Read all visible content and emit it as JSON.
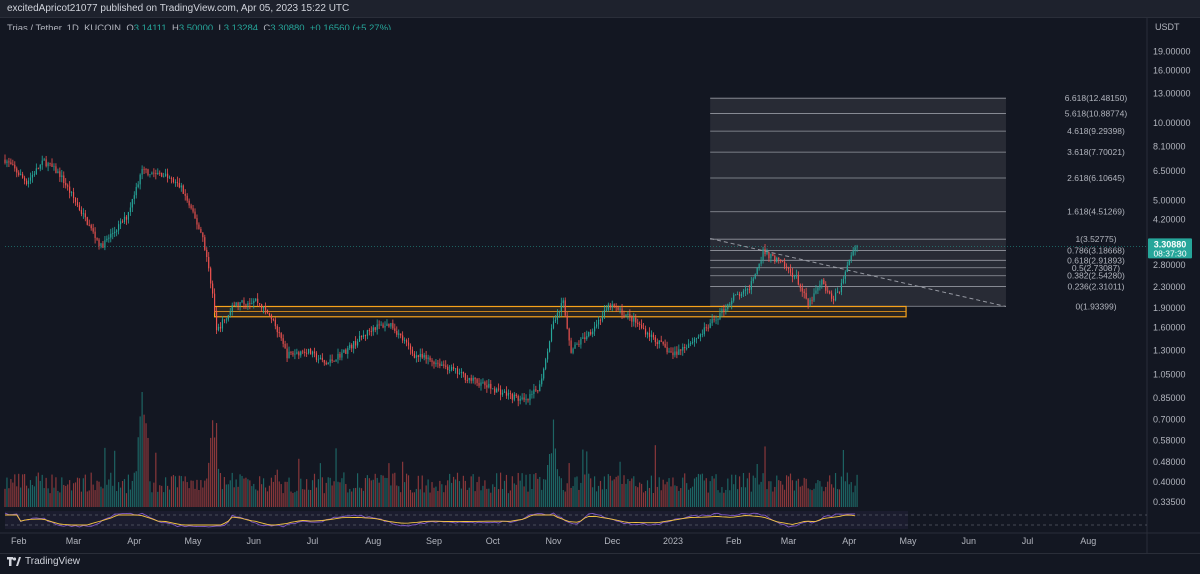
{
  "header": {
    "publish_text": "excitedApricot21077 published on TradingView.com, Apr 05, 2023 15:22 UTC"
  },
  "legend": {
    "symbol": "Trias / Tether, 1D, KUCOIN",
    "open_label": "O",
    "open": "3.14111",
    "high_label": "H",
    "high": "3.50000",
    "low_label": "L",
    "low": "3.13284",
    "close_label": "C",
    "close": "3.30880",
    "change": "+0.16560 (+5.27%)"
  },
  "footer": {
    "brand": "TradingView"
  },
  "colors": {
    "up": "#26a69a",
    "down": "#ef5350",
    "zone": "#f7a21b",
    "price_tag": "#26a69a",
    "background": "#131722"
  },
  "chart_data": {
    "type": "candlestick",
    "quote_currency": "USDT",
    "y_scale": "log",
    "ylim": [
      0.32,
      23
    ],
    "price_ticks": [
      "19.00000",
      "16.00000",
      "13.00000",
      "10.00000",
      "8.10000",
      "6.50000",
      "5.00000",
      "4.20000",
      "3.30880",
      "2.80000",
      "2.30000",
      "1.90000",
      "1.60000",
      "1.30000",
      "1.05000",
      "0.85000",
      "0.70000",
      "0.58000",
      "0.48000",
      "0.40000",
      "0.33500"
    ],
    "last_price": "3.30880",
    "countdown": "08:37:30",
    "x_range": [
      "2022-01-25",
      "2023-08-31"
    ],
    "time_labels": [
      {
        "date": "2022-02-01",
        "label": "Feb"
      },
      {
        "date": "2022-03-01",
        "label": "Mar"
      },
      {
        "date": "2022-04-01",
        "label": "Apr"
      },
      {
        "date": "2022-05-01",
        "label": "May"
      },
      {
        "date": "2022-06-01",
        "label": "Jun"
      },
      {
        "date": "2022-07-01",
        "label": "Jul"
      },
      {
        "date": "2022-08-01",
        "label": "Aug"
      },
      {
        "date": "2022-09-01",
        "label": "Sep"
      },
      {
        "date": "2022-10-01",
        "label": "Oct"
      },
      {
        "date": "2022-11-01",
        "label": "Nov"
      },
      {
        "date": "2022-12-01",
        "label": "Dec"
      },
      {
        "date": "2023-01-01",
        "label": "2023"
      },
      {
        "date": "2023-02-01",
        "label": "Feb"
      },
      {
        "date": "2023-03-01",
        "label": "Mar"
      },
      {
        "date": "2023-04-01",
        "label": "Apr"
      },
      {
        "date": "2023-05-01",
        "label": "May"
      },
      {
        "date": "2023-06-01",
        "label": "Jun"
      },
      {
        "date": "2023-07-01",
        "label": "Jul"
      },
      {
        "date": "2023-08-01",
        "label": "Aug"
      }
    ],
    "price_path": [
      [
        "2022-01-25",
        7.2
      ],
      [
        "2022-02-05",
        5.9
      ],
      [
        "2022-02-14",
        7.1
      ],
      [
        "2022-02-22",
        6.3
      ],
      [
        "2022-03-05",
        4.5
      ],
      [
        "2022-03-15",
        3.3
      ],
      [
        "2022-03-28",
        4.3
      ],
      [
        "2022-04-05",
        6.5
      ],
      [
        "2022-04-16",
        6.3
      ],
      [
        "2022-04-25",
        5.6
      ],
      [
        "2022-05-06",
        3.6
      ],
      [
        "2022-05-11",
        2.2
      ],
      [
        "2022-05-13",
        1.55
      ],
      [
        "2022-05-22",
        1.95
      ],
      [
        "2022-06-02",
        2.05
      ],
      [
        "2022-06-10",
        1.75
      ],
      [
        "2022-06-18",
        1.25
      ],
      [
        "2022-06-28",
        1.3
      ],
      [
        "2022-07-08",
        1.15
      ],
      [
        "2022-07-18",
        1.3
      ],
      [
        "2022-08-01",
        1.6
      ],
      [
        "2022-08-10",
        1.65
      ],
      [
        "2022-08-22",
        1.25
      ],
      [
        "2022-09-05",
        1.15
      ],
      [
        "2022-09-20",
        1.0
      ],
      [
        "2022-10-05",
        0.9
      ],
      [
        "2022-10-18",
        0.82
      ],
      [
        "2022-10-25",
        0.95
      ],
      [
        "2022-11-01",
        1.7
      ],
      [
        "2022-11-06",
        2.0
      ],
      [
        "2022-11-10",
        1.3
      ],
      [
        "2022-11-20",
        1.55
      ],
      [
        "2022-11-30",
        1.95
      ],
      [
        "2022-12-10",
        1.75
      ],
      [
        "2022-12-20",
        1.5
      ],
      [
        "2023-01-01",
        1.25
      ],
      [
        "2023-01-15",
        1.5
      ],
      [
        "2023-01-25",
        1.8
      ],
      [
        "2023-02-01",
        2.1
      ],
      [
        "2023-02-08",
        2.2
      ],
      [
        "2023-02-16",
        3.15
      ],
      [
        "2023-02-25",
        2.85
      ],
      [
        "2023-03-05",
        2.5
      ],
      [
        "2023-03-11",
        1.95
      ],
      [
        "2023-03-18",
        2.4
      ],
      [
        "2023-03-23",
        2.05
      ],
      [
        "2023-03-27",
        2.25
      ],
      [
        "2023-04-02",
        3.1
      ],
      [
        "2023-04-05",
        3.31
      ]
    ],
    "annotations": {
      "support_zone": {
        "top": 1.93,
        "bottom": 1.76,
        "from": "2022-05-12",
        "to": "2023-04-30"
      },
      "trendline": {
        "from": [
          "2023-01-20",
          3.55
        ],
        "to": [
          "2023-06-20",
          1.93
        ]
      },
      "fibonacci": {
        "from": "2023-01-20",
        "to": "2023-06-20",
        "levels": [
          {
            "label": "6.618(12.48150)",
            "price": 12.4815
          },
          {
            "label": "5.618(10.88774)",
            "price": 10.88774
          },
          {
            "label": "4.618(9.29398)",
            "price": 9.29398
          },
          {
            "label": "3.618(7.70021)",
            "price": 7.70021
          },
          {
            "label": "2.618(6.10645)",
            "price": 6.10645
          },
          {
            "label": "1.618(4.51269)",
            "price": 4.51269
          },
          {
            "label": "1(3.52775)",
            "price": 3.52775
          },
          {
            "label": "0.786(3.18668)",
            "price": 3.18668
          },
          {
            "label": "0.618(2.91893)",
            "price": 2.91893
          },
          {
            "label": "0.5(2.73087)",
            "price": 2.73087
          },
          {
            "label": "0.382(2.54280)",
            "price": 2.5428
          },
          {
            "label": "0.236(2.31011)",
            "price": 2.31011
          },
          {
            "label": "0(1.93399)",
            "price": 1.93399
          }
        ]
      }
    },
    "volume": {
      "type": "bar",
      "relative_peaks": [
        [
          "2022-04-05",
          1.0
        ],
        [
          "2022-05-11",
          0.75
        ],
        [
          "2022-11-01",
          0.8
        ],
        [
          "2023-02-16",
          0.35
        ]
      ]
    },
    "indicator": {
      "type": "line",
      "series": [
        "oscillator",
        "signal"
      ]
    }
  }
}
